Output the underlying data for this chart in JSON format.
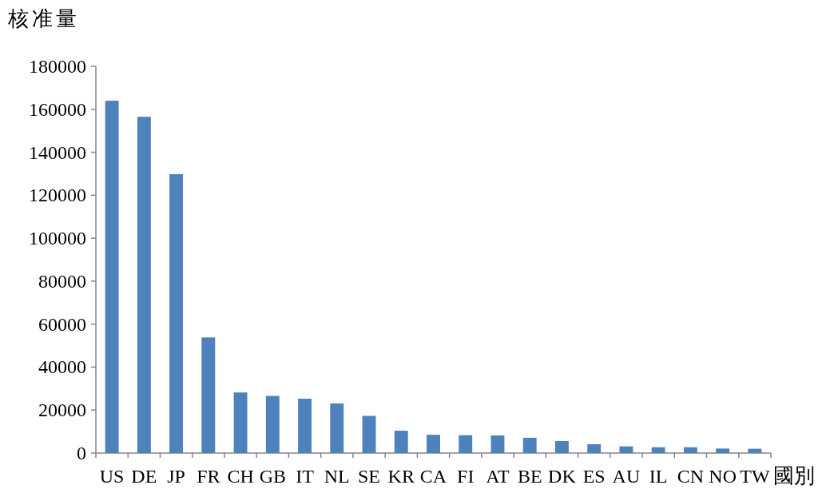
{
  "chart_data": {
    "type": "bar",
    "ylabel": "核准量",
    "xlabel": "國別",
    "categories": [
      "US",
      "DE",
      "JP",
      "FR",
      "CH",
      "GB",
      "IT",
      "NL",
      "SE",
      "KR",
      "CA",
      "FI",
      "AT",
      "BE",
      "DK",
      "ES",
      "AU",
      "IL",
      "CN",
      "NO",
      "TW"
    ],
    "values": [
      164000,
      156500,
      129800,
      53800,
      28200,
      26600,
      25300,
      23100,
      17300,
      10400,
      8500,
      8300,
      8200,
      7100,
      5600,
      4100,
      3100,
      2700,
      2700,
      2100,
      2000
    ],
    "color": "#4f81bd",
    "ylim": [
      0,
      180000
    ],
    "yticks": [
      0,
      20000,
      40000,
      60000,
      80000,
      100000,
      120000,
      140000,
      160000,
      180000
    ],
    "tick_labels": true
  }
}
